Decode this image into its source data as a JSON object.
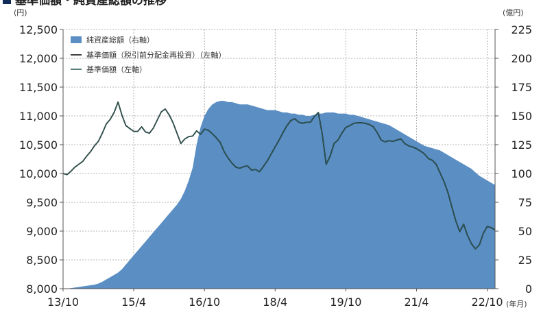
{
  "chart_data": {
    "type": "line",
    "title": "基準価額・純資産総額の推移",
    "left_unit": "(円)",
    "right_unit": "(億円)",
    "x_unit": "(年月)",
    "x_tick_labels": [
      "13/10",
      "15/4",
      "16/10",
      "18/4",
      "19/10",
      "21/4",
      "22/10"
    ],
    "left_axis": {
      "min": 8000,
      "max": 12500,
      "tick_values": [
        8000,
        8500,
        9000,
        9500,
        10000,
        10500,
        11000,
        11500,
        12000,
        12500
      ],
      "tick_labels": [
        "8,000",
        "8,500",
        "9,000",
        "9,500",
        "10,000",
        "10,500",
        "11,000",
        "11,500",
        "12,000",
        "12,500"
      ]
    },
    "right_axis": {
      "min": 0,
      "max": 225,
      "tick_values": [
        0,
        25,
        50,
        75,
        100,
        125,
        150,
        175,
        200,
        225
      ],
      "tick_labels": [
        "0",
        "25",
        "50",
        "75",
        "100",
        "125",
        "150",
        "175",
        "200",
        "225"
      ]
    },
    "grid": true,
    "legend_position": "top-left",
    "x": [
      "13/10",
      "13/11",
      "13/12",
      "14/1",
      "14/2",
      "14/3",
      "14/4",
      "14/5",
      "14/6",
      "14/7",
      "14/8",
      "14/9",
      "14/10",
      "14/11",
      "14/12",
      "15/1",
      "15/2",
      "15/3",
      "15/4",
      "15/5",
      "15/6",
      "15/7",
      "15/8",
      "15/9",
      "15/10",
      "15/11",
      "15/12",
      "16/1",
      "16/2",
      "16/3",
      "16/4",
      "16/5",
      "16/6",
      "16/7",
      "16/8",
      "16/9",
      "16/10",
      "16/11",
      "16/12",
      "17/1",
      "17/2",
      "17/3",
      "17/4",
      "17/5",
      "17/6",
      "17/7",
      "17/8",
      "17/9",
      "17/10",
      "17/11",
      "17/12",
      "18/1",
      "18/2",
      "18/3",
      "18/4",
      "18/5",
      "18/6",
      "18/7",
      "18/8",
      "18/9",
      "18/10",
      "18/11",
      "18/12",
      "19/1",
      "19/2",
      "19/3",
      "19/4",
      "19/5",
      "19/6",
      "19/7",
      "19/8",
      "19/9",
      "19/10",
      "19/11",
      "19/12",
      "20/1",
      "20/2",
      "20/3",
      "20/4",
      "20/5",
      "20/6",
      "20/7",
      "20/8",
      "20/9",
      "20/10",
      "20/11",
      "20/12",
      "21/1",
      "21/2",
      "21/3",
      "21/4",
      "21/5",
      "21/6",
      "21/7",
      "21/8",
      "21/9",
      "21/10",
      "21/11",
      "21/12",
      "22/1",
      "22/2",
      "22/3",
      "22/4",
      "22/5",
      "22/6",
      "22/7",
      "22/8",
      "22/9",
      "22/10",
      "22/11",
      "22/12"
    ],
    "series": [
      {
        "name": "純資産総額（右軸）",
        "type": "area",
        "axis": "right",
        "color": "#5b8fc4",
        "values": [
          0,
          0,
          0.5,
          1,
          1.5,
          2,
          2.5,
          3,
          3.5,
          4.5,
          6,
          8,
          10,
          12,
          14,
          17,
          21,
          25,
          29,
          33,
          37,
          41,
          45,
          49,
          53,
          57,
          61,
          65,
          69,
          73,
          78,
          85,
          94,
          105,
          125,
          140,
          150,
          156,
          160,
          162,
          163,
          163,
          162,
          162,
          161,
          160,
          160,
          160,
          159,
          158,
          157,
          156,
          155,
          155,
          155,
          154,
          153,
          153,
          152,
          152,
          151,
          151,
          150,
          150,
          151,
          152,
          152,
          153,
          153,
          153,
          152,
          152,
          152,
          151,
          151,
          150,
          149,
          148,
          147,
          146,
          145,
          144,
          143,
          142,
          140,
          138,
          136,
          134,
          132,
          130,
          128,
          126,
          124,
          123,
          122,
          121,
          120,
          118,
          116,
          114,
          112,
          110,
          108,
          106,
          104,
          101,
          98,
          96,
          94,
          92,
          90
        ]
      },
      {
        "name": "基準価額（税引前分配金再投資）（左軸）",
        "type": "line",
        "axis": "left",
        "color": "#111111",
        "values": [
          10000,
          9980,
          10040,
          10110,
          10160,
          10210,
          10300,
          10380,
          10480,
          10560,
          10700,
          10860,
          10940,
          11060,
          11240,
          11010,
          10830,
          10780,
          10730,
          10730,
          10810,
          10720,
          10700,
          10790,
          10930,
          11070,
          11120,
          11020,
          10880,
          10700,
          10520,
          10600,
          10640,
          10650,
          10740,
          10680,
          10770,
          10750,
          10690,
          10620,
          10540,
          10380,
          10270,
          10180,
          10110,
          10090,
          10120,
          10130,
          10060,
          10070,
          10030,
          10120,
          10220,
          10340,
          10460,
          10580,
          10710,
          10830,
          10920,
          10950,
          10890,
          10870,
          10890,
          10890,
          10990,
          11060,
          10680,
          10160,
          10300,
          10520,
          10580,
          10700,
          10800,
          10830,
          10870,
          10880,
          10880,
          10870,
          10850,
          10810,
          10710,
          10580,
          10550,
          10570,
          10560,
          10580,
          10600,
          10520,
          10480,
          10460,
          10430,
          10390,
          10340,
          10260,
          10230,
          10160,
          10010,
          9860,
          9670,
          9420,
          9180,
          8990,
          9120,
          8920,
          8780,
          8690,
          8760,
          8960,
          9080,
          9060,
          9020
        ]
      },
      {
        "name": "基準価額（左軸）",
        "type": "line",
        "axis": "left",
        "color": "#2f5f5a",
        "values": [
          10000,
          9980,
          10040,
          10110,
          10160,
          10210,
          10300,
          10380,
          10480,
          10560,
          10700,
          10860,
          10940,
          11060,
          11240,
          11010,
          10830,
          10780,
          10730,
          10730,
          10810,
          10720,
          10700,
          10790,
          10930,
          11070,
          11120,
          11020,
          10880,
          10700,
          10520,
          10600,
          10640,
          10650,
          10740,
          10680,
          10770,
          10750,
          10690,
          10620,
          10540,
          10380,
          10270,
          10180,
          10110,
          10090,
          10120,
          10130,
          10060,
          10070,
          10030,
          10120,
          10220,
          10340,
          10460,
          10580,
          10710,
          10830,
          10920,
          10950,
          10890,
          10870,
          10890,
          10890,
          10990,
          11060,
          10680,
          10160,
          10300,
          10520,
          10580,
          10700,
          10800,
          10830,
          10870,
          10880,
          10880,
          10870,
          10850,
          10810,
          10710,
          10580,
          10550,
          10570,
          10560,
          10580,
          10600,
          10520,
          10480,
          10460,
          10430,
          10390,
          10340,
          10260,
          10230,
          10160,
          10010,
          9860,
          9670,
          9420,
          9180,
          8990,
          9120,
          8920,
          8780,
          8690,
          8760,
          8960,
          9080,
          9060,
          9020
        ]
      }
    ]
  }
}
